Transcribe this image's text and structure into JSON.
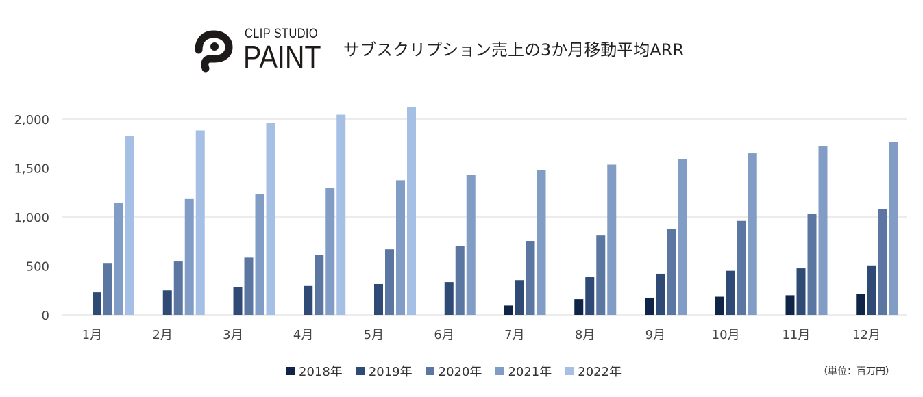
{
  "logo": {
    "brand_line1": "CLIP STUDIO",
    "brand_line2": "PAINT",
    "icon": "clip-studio-paint-logo-icon"
  },
  "note": {
    "unit": "（単位：百万円）"
  },
  "colors": {
    "2018年": "#0f2447",
    "2019年": "#2f4a75",
    "2020年": "#5b76a0",
    "2021年": "#819dc5",
    "2022年": "#a6bfe4",
    "grid": "#d9d9d9"
  },
  "chart_data": {
    "type": "bar",
    "title": "サブスクリプション売上の3か月移動平均ARR",
    "xlabel": "",
    "ylabel": "",
    "ylim": [
      0,
      2000
    ],
    "yticks": [
      0,
      500,
      1000,
      1500,
      2000
    ],
    "ytick_labels": [
      "0",
      "500",
      "1,000",
      "1,500",
      "2,000"
    ],
    "grid": true,
    "legend_position": "bottom",
    "categories": [
      "1月",
      "2月",
      "3月",
      "4月",
      "5月",
      "6月",
      "7月",
      "8月",
      "9月",
      "10月",
      "11月",
      "12月"
    ],
    "series": [
      {
        "name": "2018年",
        "values": [
          null,
          null,
          null,
          null,
          null,
          null,
          95,
          160,
          175,
          185,
          200,
          215
        ]
      },
      {
        "name": "2019年",
        "values": [
          230,
          250,
          280,
          295,
          315,
          335,
          355,
          390,
          420,
          450,
          475,
          505
        ]
      },
      {
        "name": "2020年",
        "values": [
          530,
          545,
          585,
          615,
          670,
          705,
          755,
          810,
          880,
          960,
          1030,
          1080
        ]
      },
      {
        "name": "2021年",
        "values": [
          1145,
          1190,
          1235,
          1300,
          1375,
          1430,
          1480,
          1535,
          1590,
          1650,
          1720,
          1765
        ]
      },
      {
        "name": "2022年",
        "values": [
          1830,
          1885,
          1960,
          2045,
          2120,
          null,
          null,
          null,
          null,
          null,
          null,
          null
        ]
      }
    ]
  }
}
